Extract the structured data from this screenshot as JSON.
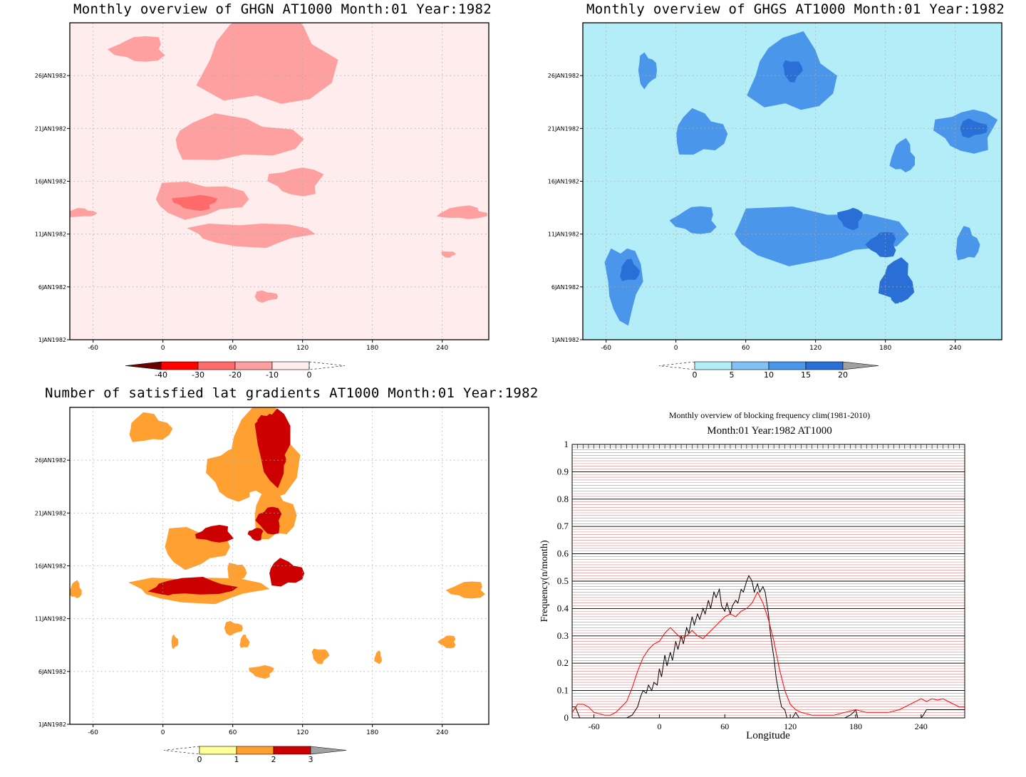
{
  "panels": [
    {
      "title": "Monthly overview of GHGN AT1000 Month:01 Year:1982",
      "type": "contour",
      "xticks": [
        "-60",
        "0",
        "60",
        "120",
        "180",
        "240"
      ],
      "yticks": [
        "1JAN1982",
        "6JAN1982",
        "11JAN1982",
        "16JAN1982",
        "21JAN1982",
        "26JAN1982"
      ],
      "colorbar": {
        "labels": [
          "-40",
          "-30",
          "-20",
          "-10",
          "0"
        ],
        "colors": [
          "#ff0000",
          "#ff6a6a",
          "#ffa0a0",
          "#ffecec"
        ],
        "low_triangle": "#6b0000",
        "high_triangle": "none"
      }
    },
    {
      "title": "Monthly overview of GHGS AT1000 Month:01 Year:1982",
      "type": "contour",
      "xticks": [
        "-60",
        "0",
        "60",
        "120",
        "180",
        "240"
      ],
      "yticks": [
        "1JAN1982",
        "6JAN1982",
        "11JAN1982",
        "16JAN1982",
        "21JAN1982",
        "26JAN1982"
      ],
      "colorbar": {
        "labels": [
          "0",
          "5",
          "10",
          "15",
          "20"
        ],
        "colors": [
          "#b3edf7",
          "#82c1f3",
          "#4a96ea",
          "#2a6fd6"
        ],
        "low_triangle": "none",
        "high_triangle": "#a0a0a0"
      }
    },
    {
      "title": "Number of satisfied lat gradients AT1000 Month:01 Year:1982",
      "type": "contour",
      "xticks": [
        "-60",
        "0",
        "60",
        "120",
        "180",
        "240"
      ],
      "yticks": [
        "1JAN1982",
        "6JAN1982",
        "11JAN1982",
        "16JAN1982",
        "21JAN1982",
        "26JAN1982"
      ],
      "colorbar": {
        "labels": [
          "0",
          "1",
          "2",
          "3"
        ],
        "colors": [
          "#ffff99",
          "#ffa030",
          "#cc0000"
        ],
        "low_triangle": "none",
        "high_triangle": "#a0a0a0"
      }
    }
  ],
  "line_panel": {
    "title": "Monthly overview of blocking frequency clim(1981-2010)",
    "subtitle": "Month:01 Year:1982  AT1000",
    "xlabel": "Longitude",
    "ylabel": "Frequency(n/month)",
    "xticks": [
      "-60",
      "0",
      "60",
      "120",
      "180",
      "240"
    ],
    "yticks": [
      "0",
      "0.1",
      "0.2",
      "0.3",
      "0.4",
      "0.5",
      "0.6",
      "0.7",
      "0.8",
      "0.9",
      "1"
    ]
  },
  "chart_data": [
    {
      "type": "heatmap",
      "title": "Monthly overview of GHGN AT1000 Month:01 Year:1982",
      "xlim": [
        -80,
        280
      ],
      "ylim": [
        "1JAN1982",
        "31JAN1982"
      ],
      "levels": [
        -40,
        -30,
        -20,
        -10,
        0
      ],
      "blobs": [
        {
          "lon": 90,
          "day": 27.5,
          "rlon": 55,
          "rday": 4.5,
          "level": -20
        },
        {
          "lon": 60,
          "day": 20.0,
          "rlon": 55,
          "rday": 2.0,
          "level": -20
        },
        {
          "lon": 30,
          "day": 14.3,
          "rlon": 40,
          "rday": 1.6,
          "level": -20
        },
        {
          "lon": 28,
          "day": 14.0,
          "rlon": 18,
          "rday": 0.7,
          "level": -30
        },
        {
          "lon": 75,
          "day": 11.0,
          "rlon": 50,
          "rday": 1.1,
          "level": -20
        },
        {
          "lon": 115,
          "day": 16.0,
          "rlon": 22,
          "rday": 1.3,
          "level": -20
        },
        {
          "lon": -20,
          "day": 28.5,
          "rlon": 22,
          "rday": 1.2,
          "level": -20
        },
        {
          "lon": 258,
          "day": 13.0,
          "rlon": 20,
          "rday": 0.6,
          "level": -20
        },
        {
          "lon": -70,
          "day": 13.0,
          "rlon": 12,
          "rday": 0.4,
          "level": -20
        },
        {
          "lon": 88,
          "day": 5.1,
          "rlon": 10,
          "rday": 0.5,
          "level": -20
        },
        {
          "lon": 245,
          "day": 9.1,
          "rlon": 6,
          "rday": 0.3,
          "level": -20
        }
      ]
    },
    {
      "type": "heatmap",
      "title": "Monthly overview of GHGS AT1000 Month:01 Year:1982",
      "xlim": [
        -80,
        280
      ],
      "ylim": [
        "1JAN1982",
        "31JAN1982"
      ],
      "levels": [
        0,
        5,
        10,
        15,
        20
      ],
      "blobs": [
        {
          "lon": 100,
          "day": 26.0,
          "rlon": 35,
          "rday": 3.5,
          "level": 10
        },
        {
          "lon": 100,
          "day": 26.5,
          "rlon": 8,
          "rday": 1.0,
          "level": 15
        },
        {
          "lon": 20,
          "day": 20.5,
          "rlon": 22,
          "rday": 2.0,
          "level": 10
        },
        {
          "lon": 118,
          "day": 11.0,
          "rlon": 75,
          "rday": 2.5,
          "level": 10
        },
        {
          "lon": 150,
          "day": 12.5,
          "rlon": 10,
          "rday": 1.0,
          "level": 15
        },
        {
          "lon": 178,
          "day": 10.0,
          "rlon": 12,
          "rday": 1.2,
          "level": 15
        },
        {
          "lon": 190,
          "day": 6.5,
          "rlon": 14,
          "rday": 2.0,
          "level": 15
        },
        {
          "lon": 190,
          "day": 5.0,
          "rlon": 6,
          "rday": 0.5,
          "level": 20
        },
        {
          "lon": -45,
          "day": 6.5,
          "rlon": 15,
          "rday": 3.5,
          "level": 10
        },
        {
          "lon": -40,
          "day": 7.5,
          "rlon": 8,
          "rday": 1.0,
          "level": 15
        },
        {
          "lon": 250,
          "day": 20.8,
          "rlon": 25,
          "rday": 2.0,
          "level": 10
        },
        {
          "lon": 255,
          "day": 21.0,
          "rlon": 12,
          "rday": 0.8,
          "level": 15
        },
        {
          "lon": 17,
          "day": 12.3,
          "rlon": 18,
          "rday": 1.3,
          "level": 10
        },
        {
          "lon": 195,
          "day": 18.3,
          "rlon": 10,
          "rday": 1.5,
          "level": 10
        },
        {
          "lon": 250,
          "day": 10.0,
          "rlon": 10,
          "rday": 1.5,
          "level": 10
        },
        {
          "lon": -25,
          "day": 26.5,
          "rlon": 8,
          "rday": 1.5,
          "level": 10
        }
      ]
    },
    {
      "type": "heatmap",
      "title": "Number of satisfied lat gradients AT1000 Month:01 Year:1982",
      "xlim": [
        -80,
        280
      ],
      "ylim": [
        "1JAN1982",
        "31JAN1982"
      ],
      "levels": [
        0,
        1,
        2,
        3
      ],
      "blobs": [
        {
          "lon": 85,
          "day": 26.5,
          "rlon": 30,
          "rday": 4.5,
          "level": 1
        },
        {
          "lon": 95,
          "day": 27.5,
          "rlon": 14,
          "rday": 3.5,
          "level": 2
        },
        {
          "lon": 95,
          "day": 26.0,
          "rlon": 10,
          "rday": 1.0,
          "level": 3
        },
        {
          "lon": 90,
          "day": 29.0,
          "rlon": 8,
          "rday": 1.5,
          "level": 3
        },
        {
          "lon": 95,
          "day": 20.8,
          "rlon": 18,
          "rday": 2.3,
          "level": 1
        },
        {
          "lon": 92,
          "day": 20.3,
          "rlon": 10,
          "rday": 1.3,
          "level": 2
        },
        {
          "lon": 80,
          "day": 19.0,
          "rlon": 6,
          "rday": 0.6,
          "level": 3
        },
        {
          "lon": 27,
          "day": 17.8,
          "rlon": 28,
          "rday": 1.8,
          "level": 1
        },
        {
          "lon": 45,
          "day": 19.0,
          "rlon": 15,
          "rday": 0.8,
          "level": 2
        },
        {
          "lon": 30,
          "day": 13.8,
          "rlon": 55,
          "rday": 1.2,
          "level": 1
        },
        {
          "lon": 25,
          "day": 14.0,
          "rlon": 35,
          "rday": 0.8,
          "level": 2
        },
        {
          "lon": 3,
          "day": 13.7,
          "rlon": 6,
          "rday": 0.5,
          "level": 3
        },
        {
          "lon": 105,
          "day": 15.3,
          "rlon": 15,
          "rday": 1.2,
          "level": 2
        },
        {
          "lon": 60,
          "day": 24.8,
          "rlon": 20,
          "rday": 2.5,
          "level": 1
        },
        {
          "lon": 262,
          "day": 13.7,
          "rlon": 15,
          "rday": 0.8,
          "level": 1
        },
        {
          "lon": -75,
          "day": 13.7,
          "rlon": 5,
          "rday": 0.8,
          "level": 1
        },
        {
          "lon": -12,
          "day": 29.0,
          "rlon": 18,
          "rday": 1.3,
          "level": 1
        },
        {
          "lon": 60,
          "day": 10.1,
          "rlon": 8,
          "rday": 0.6,
          "level": 1
        },
        {
          "lon": 135,
          "day": 7.5,
          "rlon": 7,
          "rday": 0.7,
          "level": 1
        },
        {
          "lon": 85,
          "day": 6.0,
          "rlon": 10,
          "rday": 0.6,
          "level": 1
        },
        {
          "lon": 245,
          "day": 8.8,
          "rlon": 7,
          "rday": 0.6,
          "level": 1
        },
        {
          "lon": 185,
          "day": 7.3,
          "rlon": 3,
          "rday": 0.6,
          "level": 1
        },
        {
          "lon": 70,
          "day": 8.8,
          "rlon": 4,
          "rday": 0.6,
          "level": 1
        },
        {
          "lon": 10,
          "day": 8.8,
          "rlon": 3,
          "rday": 0.6,
          "level": 1
        },
        {
          "lon": 63,
          "day": 15.3,
          "rlon": 8,
          "rday": 1.0,
          "level": 1
        }
      ]
    },
    {
      "type": "line",
      "title": "Monthly overview of blocking frequency clim(1981-2010)",
      "xlabel": "Longitude",
      "ylabel": "Frequency(n/month)",
      "xlim": [
        -80,
        280
      ],
      "ylim": [
        0,
        1
      ],
      "series": [
        {
          "color": "#000000",
          "x": [
            -80,
            -77,
            -73,
            -70,
            -65,
            -60,
            -55,
            -50,
            -45,
            -40,
            -35,
            -30,
            -25,
            -20,
            -17,
            -15,
            -12,
            -10,
            -7,
            -5,
            -2,
            0,
            2,
            5,
            7,
            10,
            12,
            15,
            17,
            20,
            22,
            25,
            27,
            30,
            32,
            35,
            37,
            40,
            42,
            45,
            47,
            50,
            52,
            55,
            57,
            60,
            62,
            65,
            67,
            70,
            72,
            75,
            77,
            80,
            82,
            85,
            87,
            90,
            92,
            95,
            97,
            100,
            102,
            105,
            107,
            110,
            112,
            115,
            117,
            120,
            122,
            125,
            128,
            130,
            135,
            140,
            150,
            160,
            170,
            175,
            178,
            180,
            182,
            185,
            190,
            200,
            210,
            220,
            230,
            240,
            242,
            245,
            250,
            260,
            270,
            280
          ],
          "y": [
            0.04,
            0.04,
            0.0,
            0.0,
            0.0,
            0.0,
            0.0,
            0.0,
            0.0,
            0.0,
            0.0,
            0.0,
            0.01,
            0.04,
            0.08,
            0.1,
            0.09,
            0.12,
            0.1,
            0.13,
            0.12,
            0.18,
            0.15,
            0.23,
            0.19,
            0.24,
            0.21,
            0.28,
            0.25,
            0.3,
            0.27,
            0.33,
            0.31,
            0.37,
            0.34,
            0.38,
            0.36,
            0.4,
            0.38,
            0.43,
            0.4,
            0.46,
            0.44,
            0.47,
            0.41,
            0.39,
            0.42,
            0.38,
            0.41,
            0.43,
            0.42,
            0.47,
            0.46,
            0.5,
            0.52,
            0.5,
            0.46,
            0.49,
            0.46,
            0.48,
            0.46,
            0.38,
            0.3,
            0.22,
            0.15,
            0.08,
            0.04,
            0.03,
            0.0,
            0.0,
            0.0,
            0.02,
            0.0,
            0.0,
            0.0,
            0.0,
            0.0,
            0.0,
            0.0,
            0.01,
            0.02,
            0.03,
            0.0,
            0.0,
            0.0,
            0.0,
            0.0,
            0.0,
            0.0,
            0.0,
            0.01,
            0.03,
            0.03,
            0.03,
            0.03,
            0.03
          ]
        },
        {
          "color": "#ff0000",
          "x": [
            -80,
            -75,
            -70,
            -65,
            -60,
            -55,
            -50,
            -45,
            -40,
            -35,
            -30,
            -25,
            -20,
            -15,
            -10,
            -5,
            0,
            5,
            10,
            15,
            20,
            25,
            30,
            35,
            40,
            45,
            50,
            55,
            60,
            65,
            70,
            75,
            80,
            85,
            90,
            95,
            100,
            105,
            110,
            115,
            120,
            125,
            130,
            135,
            140,
            150,
            160,
            170,
            180,
            190,
            200,
            210,
            220,
            230,
            240,
            245,
            250,
            255,
            260,
            265,
            270,
            275,
            280
          ],
          "y": [
            0.02,
            0.05,
            0.05,
            0.04,
            0.02,
            0.015,
            0.01,
            0.01,
            0.02,
            0.04,
            0.06,
            0.11,
            0.17,
            0.22,
            0.25,
            0.27,
            0.28,
            0.31,
            0.33,
            0.31,
            0.29,
            0.3,
            0.32,
            0.3,
            0.29,
            0.31,
            0.33,
            0.35,
            0.37,
            0.38,
            0.37,
            0.39,
            0.4,
            0.42,
            0.46,
            0.42,
            0.36,
            0.28,
            0.18,
            0.1,
            0.05,
            0.03,
            0.02,
            0.015,
            0.01,
            0.01,
            0.01,
            0.02,
            0.03,
            0.02,
            0.02,
            0.02,
            0.03,
            0.05,
            0.07,
            0.06,
            0.07,
            0.065,
            0.07,
            0.06,
            0.05,
            0.04,
            0.04
          ]
        }
      ]
    }
  ]
}
